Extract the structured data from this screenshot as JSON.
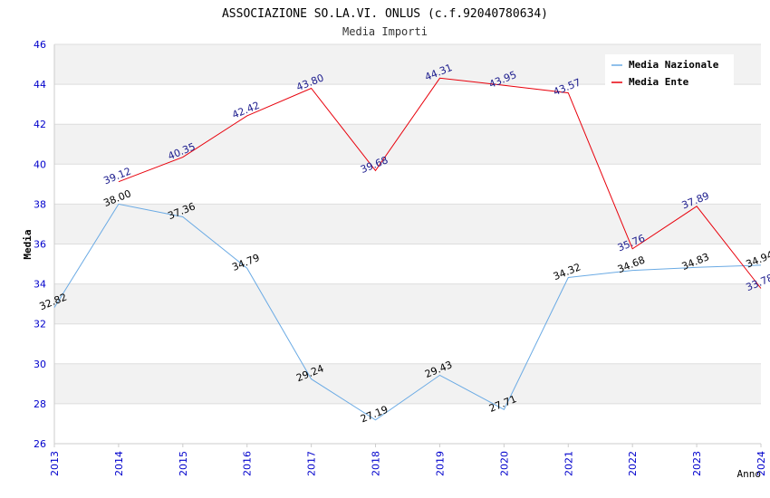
{
  "chart_data": {
    "type": "line",
    "title": "ASSOCIAZIONE SO.LA.VI. ONLUS (c.f.92040780634)",
    "subtitle": "Media Importi",
    "xlabel": "Anno",
    "ylabel": "Media",
    "ylim": [
      26,
      46
    ],
    "yticks": [
      "26",
      "28",
      "30",
      "32",
      "34",
      "36",
      "38",
      "40",
      "42",
      "44",
      "46"
    ],
    "categories": [
      "2013",
      "2014",
      "2015",
      "2016",
      "2017",
      "2018",
      "2019",
      "2020",
      "2021",
      "2022",
      "2023",
      "2024"
    ],
    "legend_position": "top-right",
    "series": [
      {
        "name": "Media Nazionale",
        "color": "#6aaae4",
        "label_color": "#000000",
        "values": [
          32.82,
          38.0,
          37.36,
          34.79,
          29.24,
          27.19,
          29.43,
          27.71,
          34.32,
          34.68,
          34.83,
          34.94
        ],
        "labels": [
          "32.82",
          "38.00",
          "37.36",
          "34.79",
          "29.24",
          "27.19",
          "29.43",
          "27.71",
          "34.32",
          "34.68",
          "34.83",
          "34.94"
        ]
      },
      {
        "name": "Media Ente",
        "color": "#e8000b",
        "label_color": "#1a1a8c",
        "values": [
          null,
          39.12,
          40.35,
          42.42,
          43.8,
          39.68,
          44.31,
          43.95,
          43.57,
          35.76,
          37.89,
          33.78
        ],
        "labels": [
          null,
          "39.12",
          "40.35",
          "42.42",
          "43.80",
          "39.68",
          "44.31",
          "43.95",
          "43.57",
          "35.76",
          "37.89",
          "33.78"
        ]
      }
    ],
    "colors": {
      "axis_tick_text": "#0000cc",
      "band": "#f2f2f2",
      "grid": "#dddddd"
    }
  }
}
